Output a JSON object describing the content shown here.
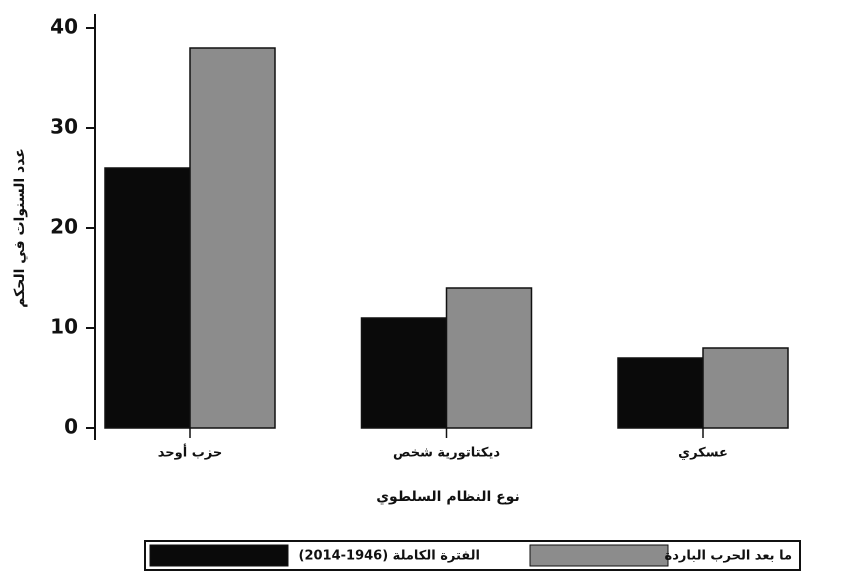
{
  "chart_data": {
    "type": "bar",
    "categories": [
      "حزب أوحد",
      "ديكتاتورية شخص",
      "عسكري"
    ],
    "series": [
      {
        "name": "الفترة الكاملة (1946-2014)",
        "color": "#0a0a0a",
        "values": [
          26,
          11,
          7
        ]
      },
      {
        "name": "ما بعد الحرب الباردة",
        "color": "#8c8c8c",
        "values": [
          38,
          14,
          8
        ]
      }
    ],
    "xlabel": "نوع النظام السلطوي",
    "ylabel": "عدد السنوات في الحكم",
    "ylim": [
      0,
      41.3
    ],
    "yticks": [
      0,
      10,
      20,
      30,
      40
    ],
    "grid": false,
    "legend": "bottom"
  }
}
